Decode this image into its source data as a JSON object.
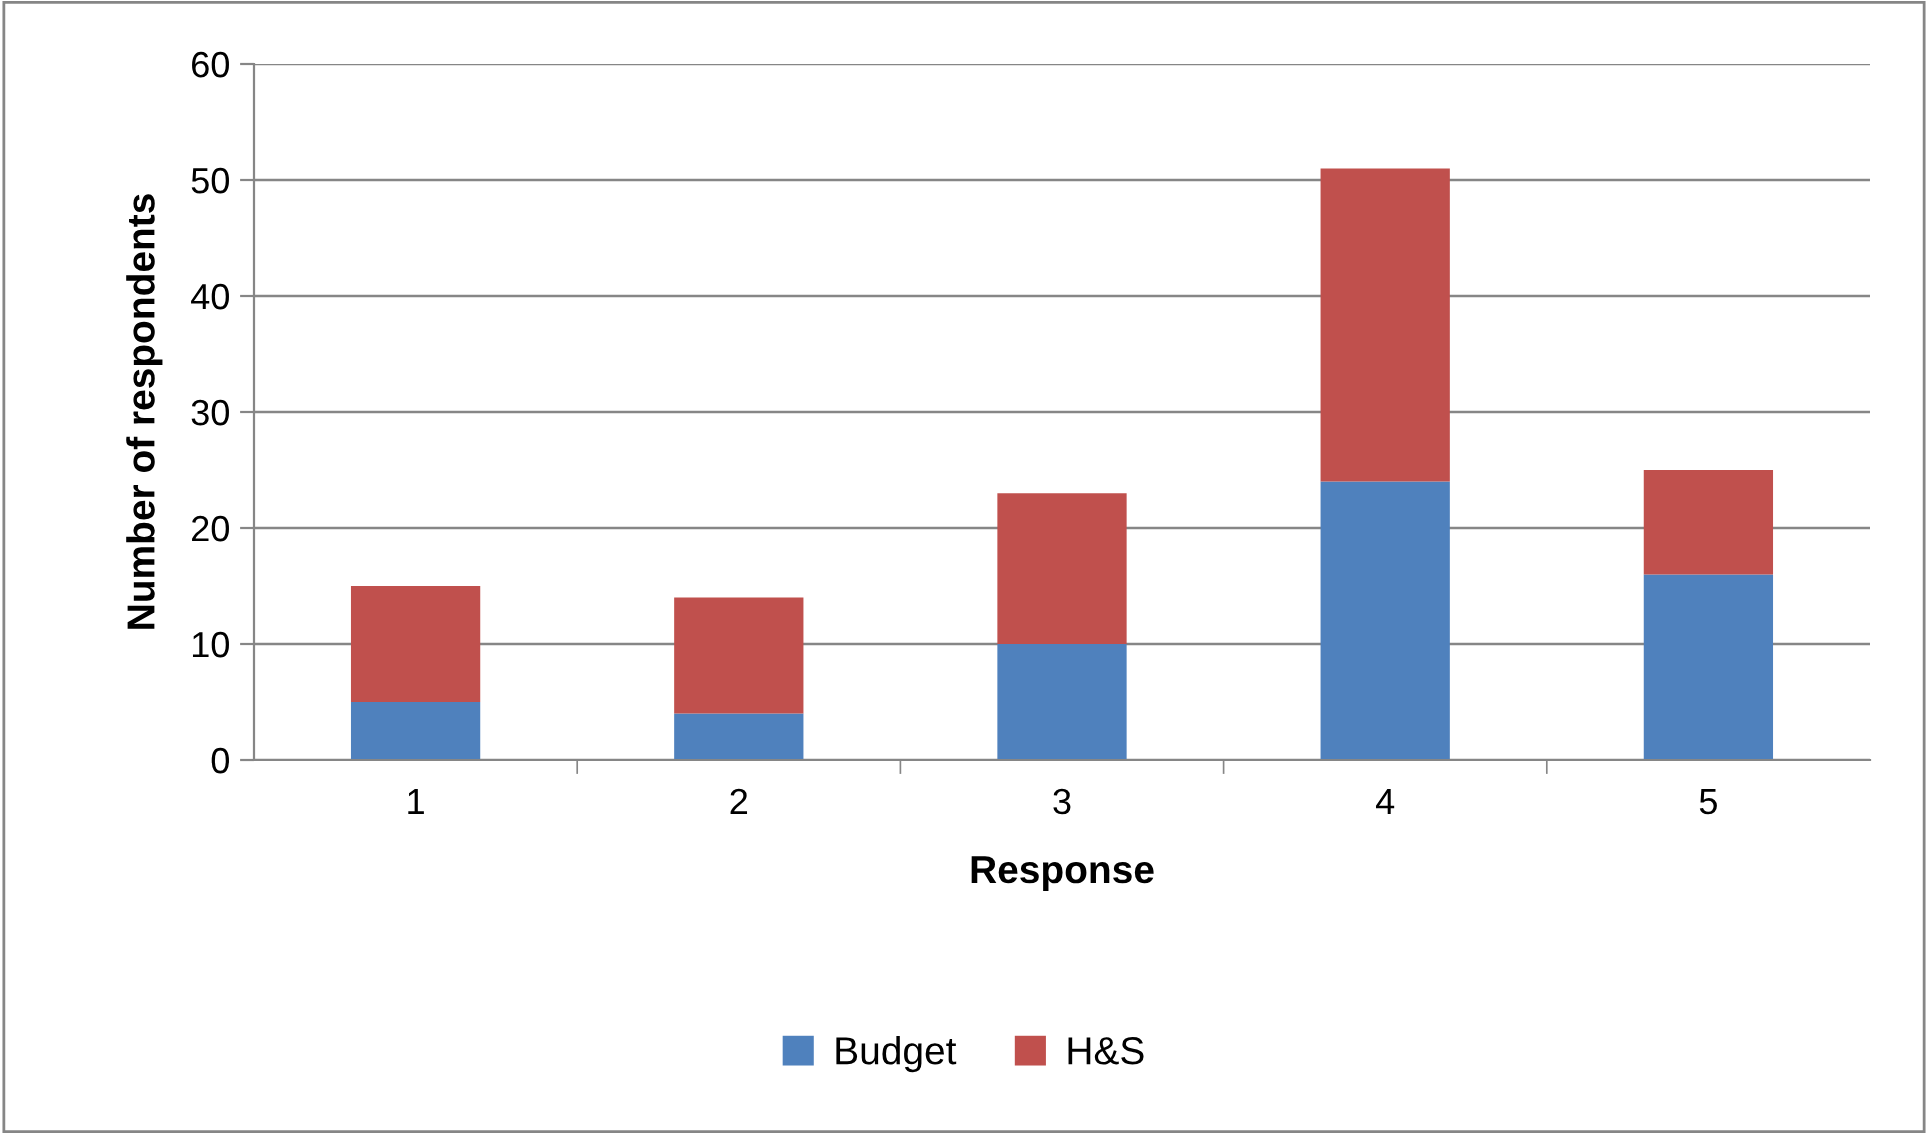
{
  "chart_data": {
    "type": "bar",
    "stacked": true,
    "xlabel": "Response",
    "ylabel": "Number of respondents",
    "categories": [
      "1",
      "2",
      "3",
      "4",
      "5"
    ],
    "series": [
      {
        "name": "Budget",
        "color": "#4f81bd",
        "values": [
          5,
          4,
          10,
          24,
          16
        ]
      },
      {
        "name": "H&S",
        "color": "#c0504d",
        "values": [
          10,
          10,
          13,
          27,
          9
        ]
      }
    ],
    "ylim": [
      0,
      60
    ],
    "yticks": [
      0,
      10,
      20,
      30,
      40,
      50,
      60
    ],
    "grid": "y",
    "legend": "bottom"
  }
}
